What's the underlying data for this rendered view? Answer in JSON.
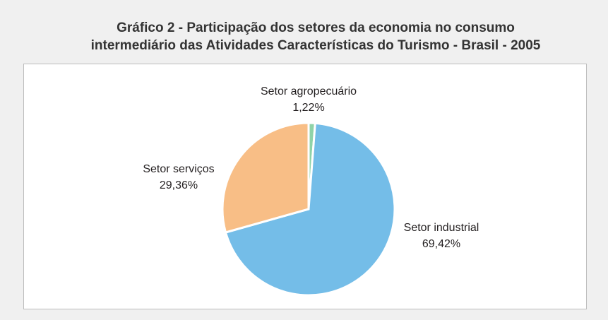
{
  "chart_data": {
    "type": "pie",
    "title": [
      "Gráfico 2 - Participação dos setores da economia no consumo",
      "intermediário das Atividades Características do Turismo - Brasil - 2005"
    ],
    "categories": [
      "Setor agropecuário",
      "Setor industrial",
      "Setor serviços"
    ],
    "values": [
      1.22,
      69.42,
      29.36
    ],
    "value_labels": [
      "1,22%",
      "69,42%",
      "29,36%"
    ],
    "colors": [
      "#8fd3a8",
      "#74bde8",
      "#f8be86"
    ]
  }
}
